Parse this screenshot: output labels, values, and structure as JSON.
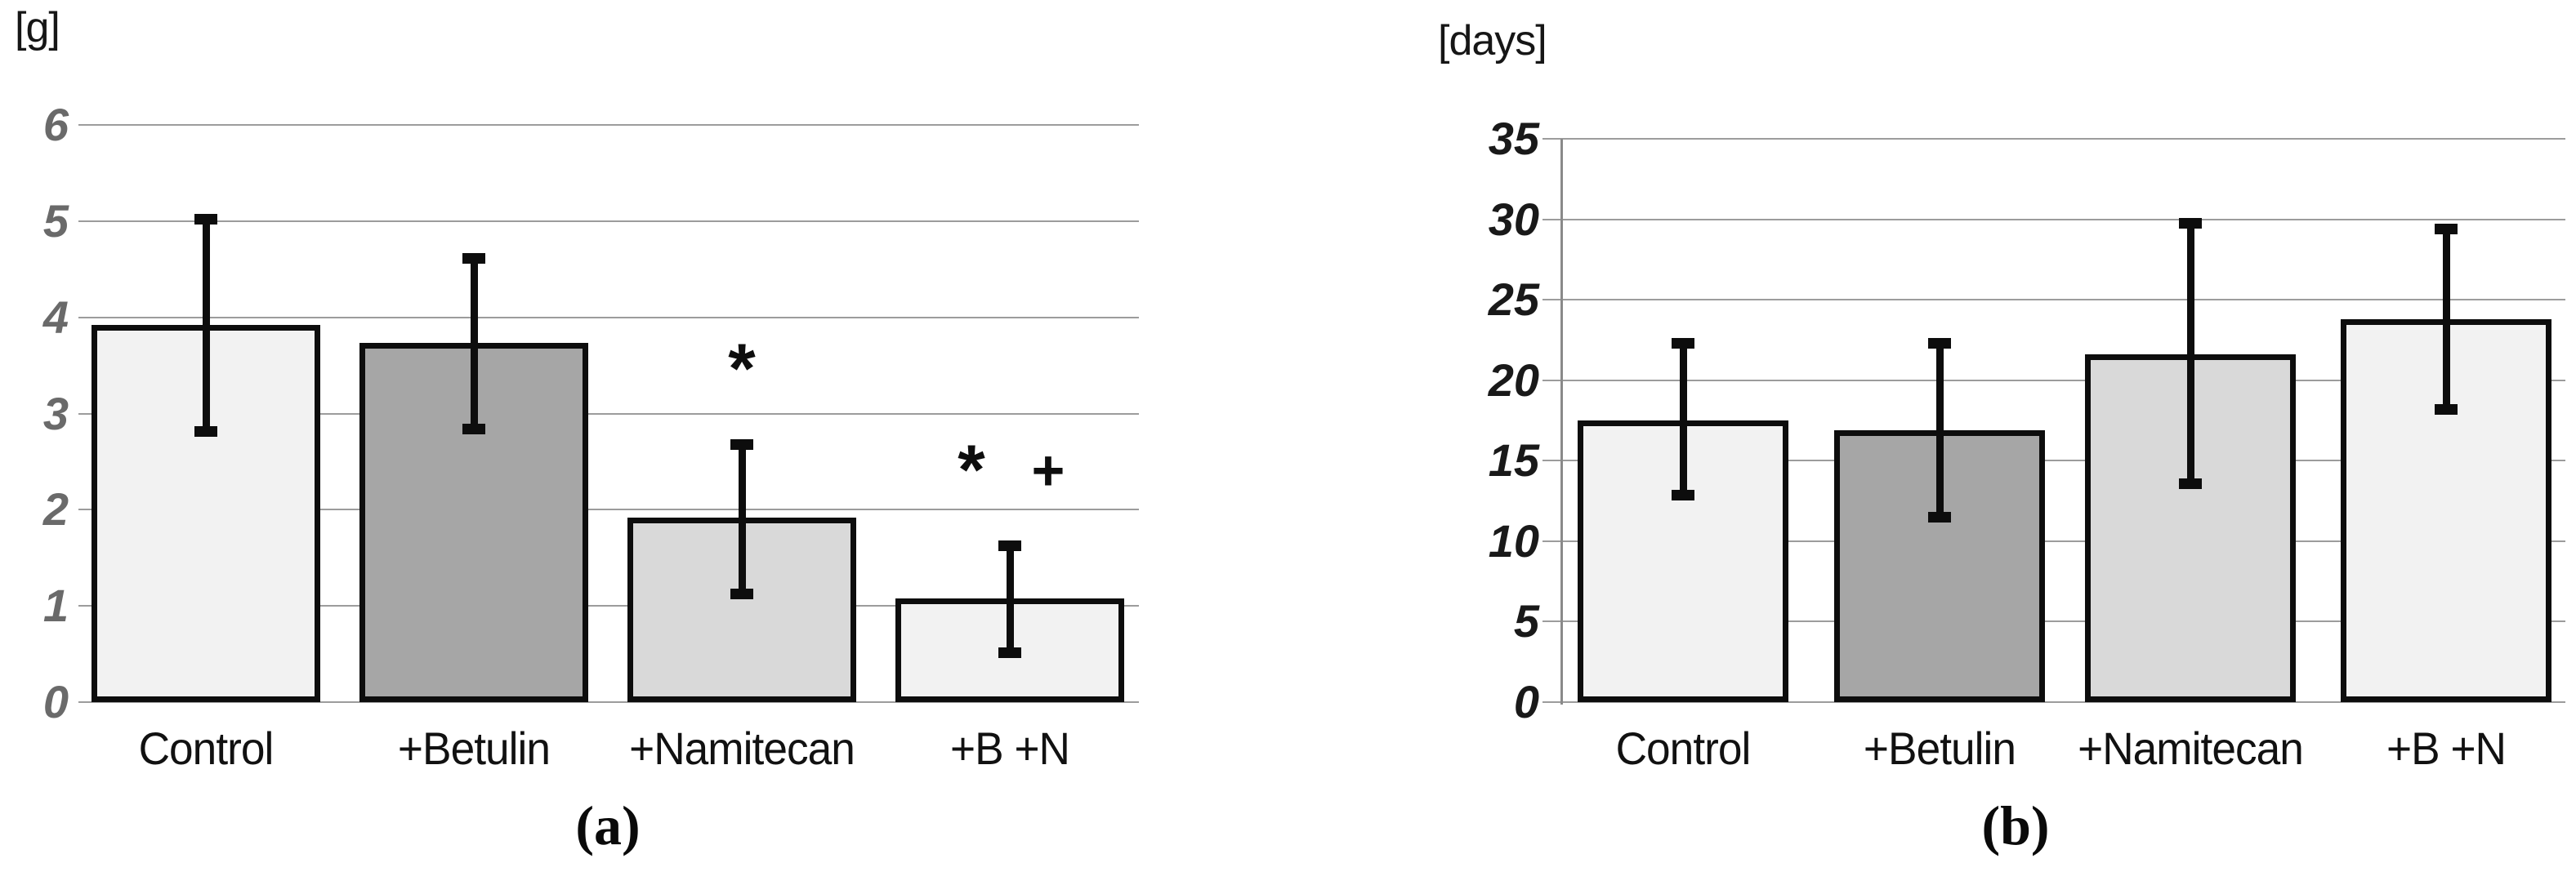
{
  "style": {
    "background": "#ffffff",
    "grid_color": "#9c9c9c",
    "axis_line_color": "#8a8a8a",
    "bar_border_color": "#0d0d0d",
    "error_bar_color": "#0d0d0d",
    "label_color": "#111111"
  },
  "chart_data": [
    {
      "panel_label": "(a)",
      "type": "bar",
      "title": "",
      "unit_label": "[g]",
      "xlabel": "",
      "ylabel": "[g]",
      "categories": [
        "Control",
        "+Betulin",
        "+Namitecan",
        "+B +N"
      ],
      "values": [
        3.92,
        3.73,
        1.92,
        1.08
      ],
      "error_low": [
        2.82,
        2.84,
        1.13,
        0.52
      ],
      "error_high": [
        5.02,
        4.62,
        2.68,
        1.63
      ],
      "significance": [
        null,
        null,
        [
          "*"
        ],
        [
          "*",
          "+"
        ]
      ],
      "ylim": [
        0,
        6
      ],
      "ytick_step": 1,
      "ytick_labels": [
        "0",
        "1",
        "2",
        "3",
        "4",
        "5",
        "6"
      ],
      "grid": true,
      "legend": "none",
      "bar_colors": [
        "#f2f2f2",
        "#a6a6a6",
        "#d9d9d9",
        "#f2f2f2"
      ],
      "tick_color": "#6a6a6a"
    },
    {
      "panel_label": "(b)",
      "type": "bar",
      "title": "",
      "unit_label": "[days]",
      "xlabel": "",
      "ylabel": "[days]",
      "categories": [
        "Control",
        "+Betulin",
        "+Namitecan",
        "+B +N"
      ],
      "values": [
        17.5,
        16.9,
        21.6,
        23.8
      ],
      "error_low": [
        12.9,
        11.5,
        13.6,
        18.2
      ],
      "error_high": [
        22.3,
        22.3,
        29.8,
        29.4
      ],
      "significance": [
        null,
        null,
        null,
        null
      ],
      "ylim": [
        0,
        35
      ],
      "ytick_step": 5,
      "ytick_labels": [
        "0",
        "5",
        "10",
        "15",
        "20",
        "25",
        "30",
        "35"
      ],
      "grid": true,
      "legend": "none",
      "bar_colors": [
        "#f2f2f2",
        "#a6a6a6",
        "#d9d9d9",
        "#f2f2f2"
      ],
      "tick_color": "#191919"
    }
  ]
}
